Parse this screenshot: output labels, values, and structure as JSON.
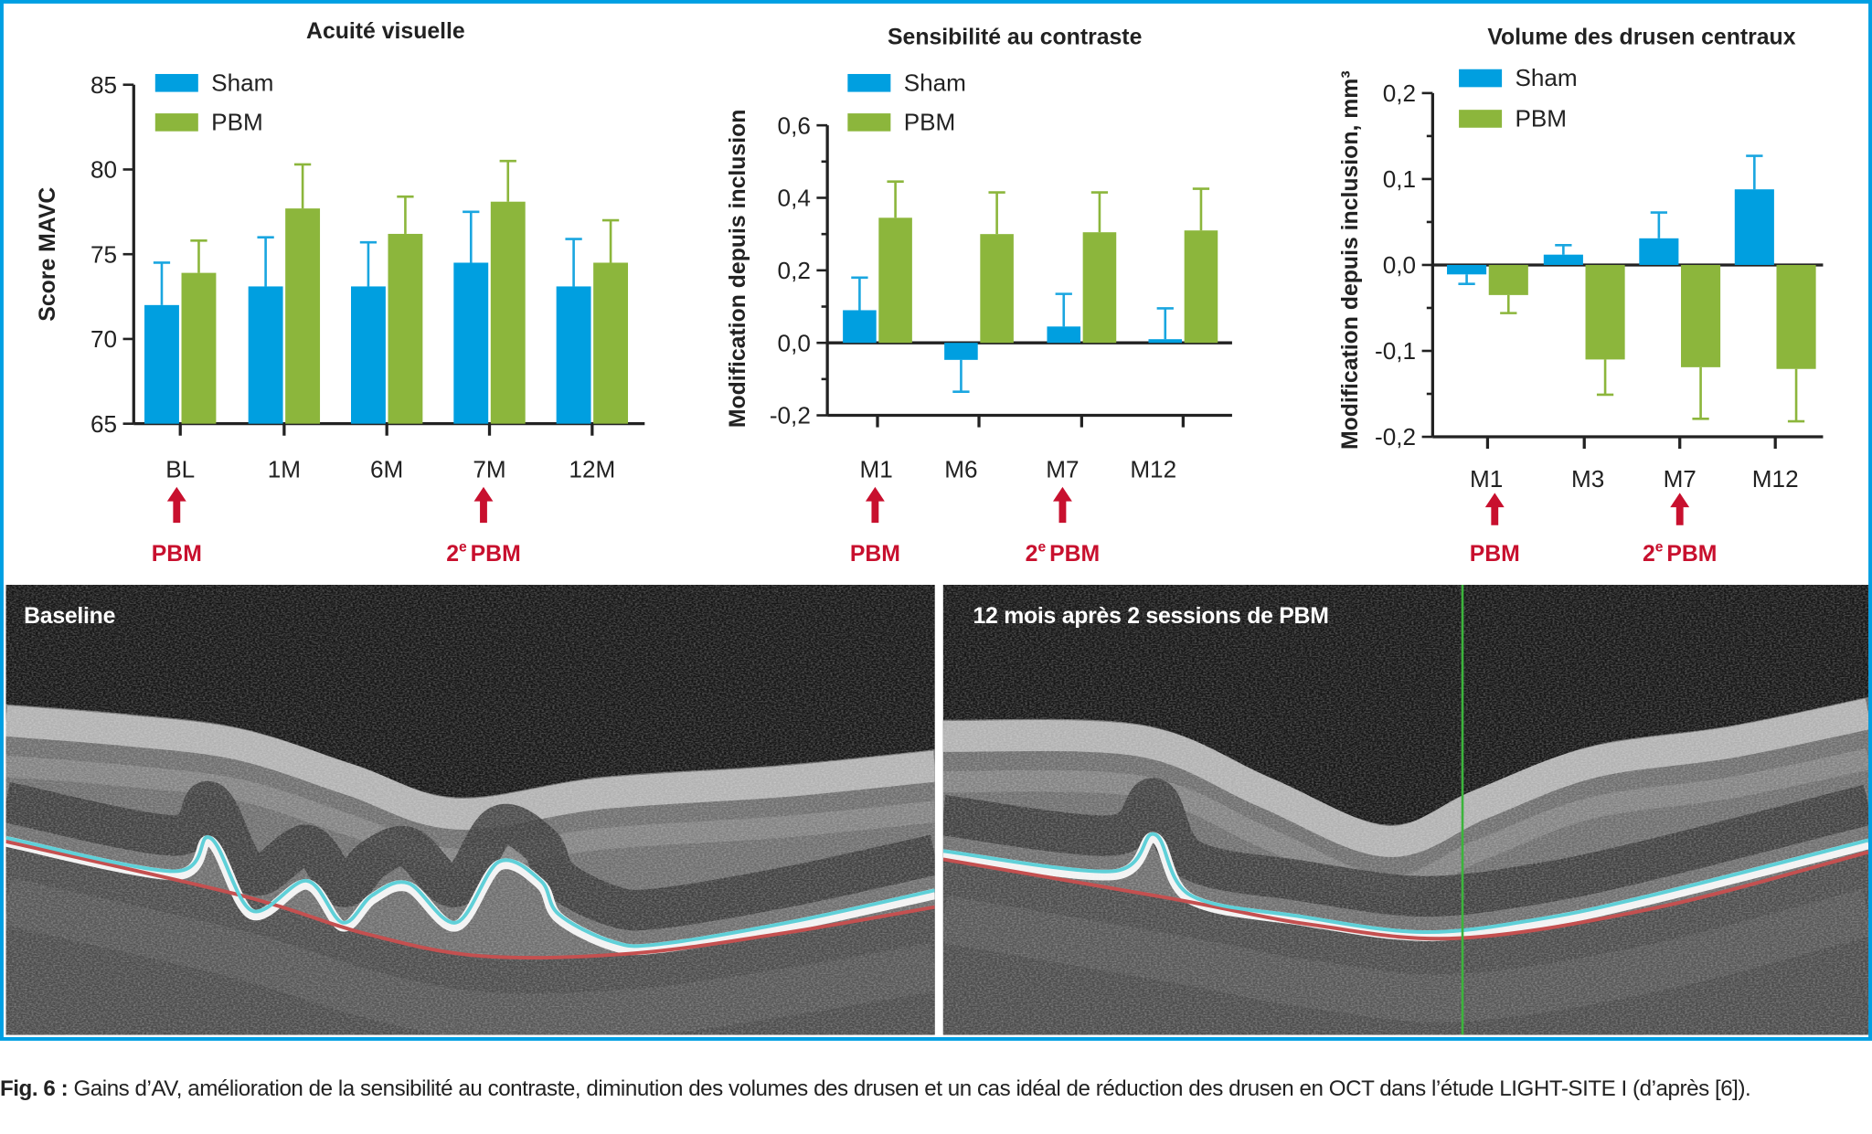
{
  "colors": {
    "sham": "#009fe0",
    "pbm": "#8cb63c",
    "sham_error": "#1aa6e0",
    "pbm_error": "#8cb63c",
    "annotation": "#c8102e",
    "frame": "#009fe3"
  },
  "chart_data": [
    {
      "type": "bar",
      "title": "Acuité visuelle",
      "xlabel": "",
      "ylabel": "Score MAVC",
      "legend": [
        "Sham",
        "PBM"
      ],
      "legend_position": "top-left",
      "categories": [
        "BL",
        "1M",
        "6M",
        "7M",
        "12M"
      ],
      "series": [
        {
          "name": "Sham",
          "values": [
            72.0,
            73.1,
            73.1,
            74.5,
            73.1
          ],
          "error": [
            2.5,
            2.9,
            2.6,
            3.0,
            2.8
          ]
        },
        {
          "name": "PBM",
          "values": [
            73.9,
            77.7,
            76.2,
            78.1,
            74.5
          ],
          "error": [
            1.9,
            2.6,
            2.2,
            2.4,
            2.5
          ]
        }
      ],
      "ylim": [
        65,
        85
      ],
      "yticks": [
        85,
        80,
        75,
        70,
        65
      ],
      "ytick_labels": [
        "85",
        "80",
        "75",
        "70",
        "65"
      ],
      "baseline": 65,
      "annotations": [
        {
          "category": "BL",
          "ordinal": "",
          "ordinal_sup": "",
          "label": "PBM"
        },
        {
          "category": "7M",
          "ordinal": "2",
          "ordinal_sup": "e",
          "label": "PBM"
        }
      ]
    },
    {
      "type": "bar",
      "title": "Sensibilité au contraste",
      "xlabel": "",
      "ylabel": "Modification depuis inclusion",
      "legend": [
        "Sham",
        "PBM"
      ],
      "legend_position": "top-left",
      "categories": [
        "M1",
        "M6",
        "M7",
        "M12"
      ],
      "series": [
        {
          "name": "Sham",
          "values": [
            0.09,
            -0.047,
            0.045,
            0.01
          ],
          "error": [
            0.09,
            0.088,
            0.09,
            0.085
          ]
        },
        {
          "name": "PBM",
          "values": [
            0.345,
            0.3,
            0.305,
            0.31
          ],
          "error": [
            0.1,
            0.115,
            0.11,
            0.115
          ]
        }
      ],
      "ylim": [
        -0.2,
        0.6
      ],
      "yticks": [
        0.6,
        0.4,
        0.2,
        0.0,
        -0.2
      ],
      "ytick_labels": [
        "0,6",
        "0,4",
        "0,2",
        "0,0",
        "-0,2"
      ],
      "baseline": 0,
      "annotations": [
        {
          "category": "M1",
          "ordinal": "",
          "ordinal_sup": "",
          "label": "PBM"
        },
        {
          "category": "M7",
          "ordinal": "2",
          "ordinal_sup": "e",
          "label": "PBM"
        }
      ]
    },
    {
      "type": "bar",
      "title": "Volume des drusen centraux",
      "xlabel": "",
      "ylabel": "Modification depuis inclusion, mm³",
      "legend": [
        "Sham",
        "PBM"
      ],
      "legend_position": "top-left",
      "categories": [
        "M1",
        "M3",
        "M7",
        "M12"
      ],
      "series": [
        {
          "name": "Sham",
          "values": [
            -0.011,
            0.012,
            0.031,
            0.088
          ],
          "error": [
            0.011,
            0.011,
            0.03,
            0.039
          ]
        },
        {
          "name": "PBM",
          "values": [
            -0.035,
            -0.11,
            -0.119,
            -0.121
          ],
          "error": [
            0.021,
            0.041,
            0.06,
            0.061
          ]
        }
      ],
      "ylim": [
        -0.2,
        0.2
      ],
      "yticks": [
        0.2,
        0.1,
        0.0,
        -0.1,
        -0.2
      ],
      "ytick_labels": [
        "0,2",
        "0,1",
        "0,0",
        "-0,1",
        "-0,2"
      ],
      "baseline": 0,
      "annotations": [
        {
          "category": "M1",
          "ordinal": "",
          "ordinal_sup": "",
          "label": "PBM"
        },
        {
          "category": "M7",
          "ordinal": "2",
          "ordinal_sup": "e",
          "label": "PBM"
        }
      ]
    }
  ],
  "oct_panels": [
    {
      "label": "Baseline"
    },
    {
      "label": "12 mois après 2 sessions de PBM"
    }
  ],
  "caption": {
    "label": "Fig. 6 :",
    "text": " Gains d’AV, amélioration de la sensibilité au contraste, diminution des volumes des drusen et un cas idéal de réduction des drusen en OCT dans l’étude LIGHT-SITE I (d’après [6])."
  }
}
